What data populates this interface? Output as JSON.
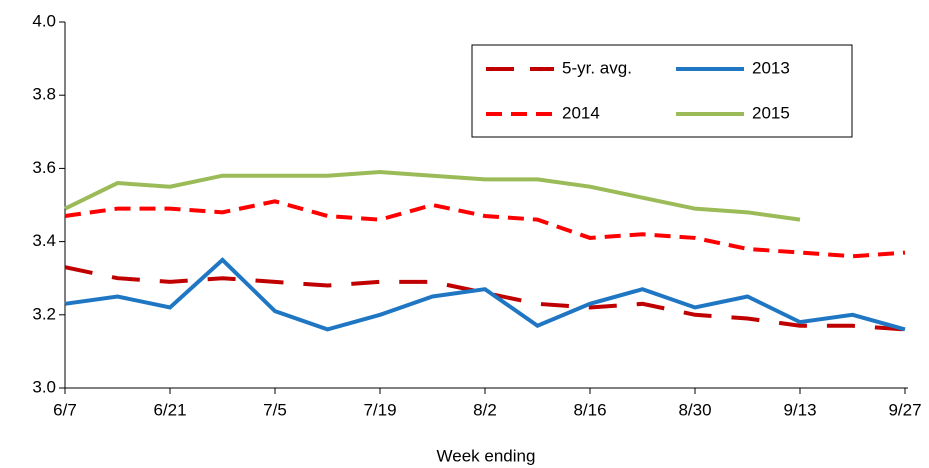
{
  "chart_data": {
    "type": "line",
    "x_label": "Week ending",
    "categories": [
      "6/7",
      null,
      "6/21",
      null,
      "7/5",
      null,
      "7/19",
      null,
      "8/2",
      null,
      "8/16",
      null,
      "8/30",
      null,
      "9/13",
      null,
      "9/27"
    ],
    "series": [
      {
        "name": "5-yr. avg.",
        "color": "#c00000",
        "line_style": "long-dash",
        "values": [
          3.33,
          3.3,
          3.29,
          3.3,
          3.29,
          3.28,
          3.29,
          3.29,
          3.26,
          3.23,
          3.22,
          3.23,
          3.2,
          3.19,
          3.17,
          3.17,
          3.16
        ]
      },
      {
        "name": "2013",
        "color": "#1f77c4",
        "line_style": "solid",
        "values": [
          3.23,
          3.25,
          3.22,
          3.35,
          3.21,
          3.16,
          3.2,
          3.25,
          3.27,
          3.17,
          3.23,
          3.27,
          3.22,
          3.25,
          3.18,
          3.2,
          3.16
        ]
      },
      {
        "name": "2014",
        "color": "#ff0000",
        "line_style": "dash",
        "values": [
          3.47,
          3.49,
          3.49,
          3.48,
          3.51,
          3.47,
          3.46,
          3.5,
          3.47,
          3.46,
          3.41,
          3.42,
          3.41,
          3.38,
          3.37,
          3.36,
          3.37
        ]
      },
      {
        "name": "2015",
        "color": "#9bbb59",
        "line_style": "solid",
        "values": [
          3.49,
          3.56,
          3.55,
          3.58,
          3.58,
          3.58,
          3.59,
          3.58,
          3.57,
          3.57,
          3.55,
          3.52,
          3.49,
          3.48,
          3.46,
          null,
          null
        ]
      }
    ],
    "ylim": [
      3.0,
      4.0
    ],
    "yticks": [
      {
        "value": 3.0,
        "label": "3.0"
      },
      3.2,
      3.4,
      3.6,
      3.8,
      {
        "value": 4.0,
        "label": "4.0"
      }
    ],
    "grid": false,
    "legend": "top-right"
  }
}
